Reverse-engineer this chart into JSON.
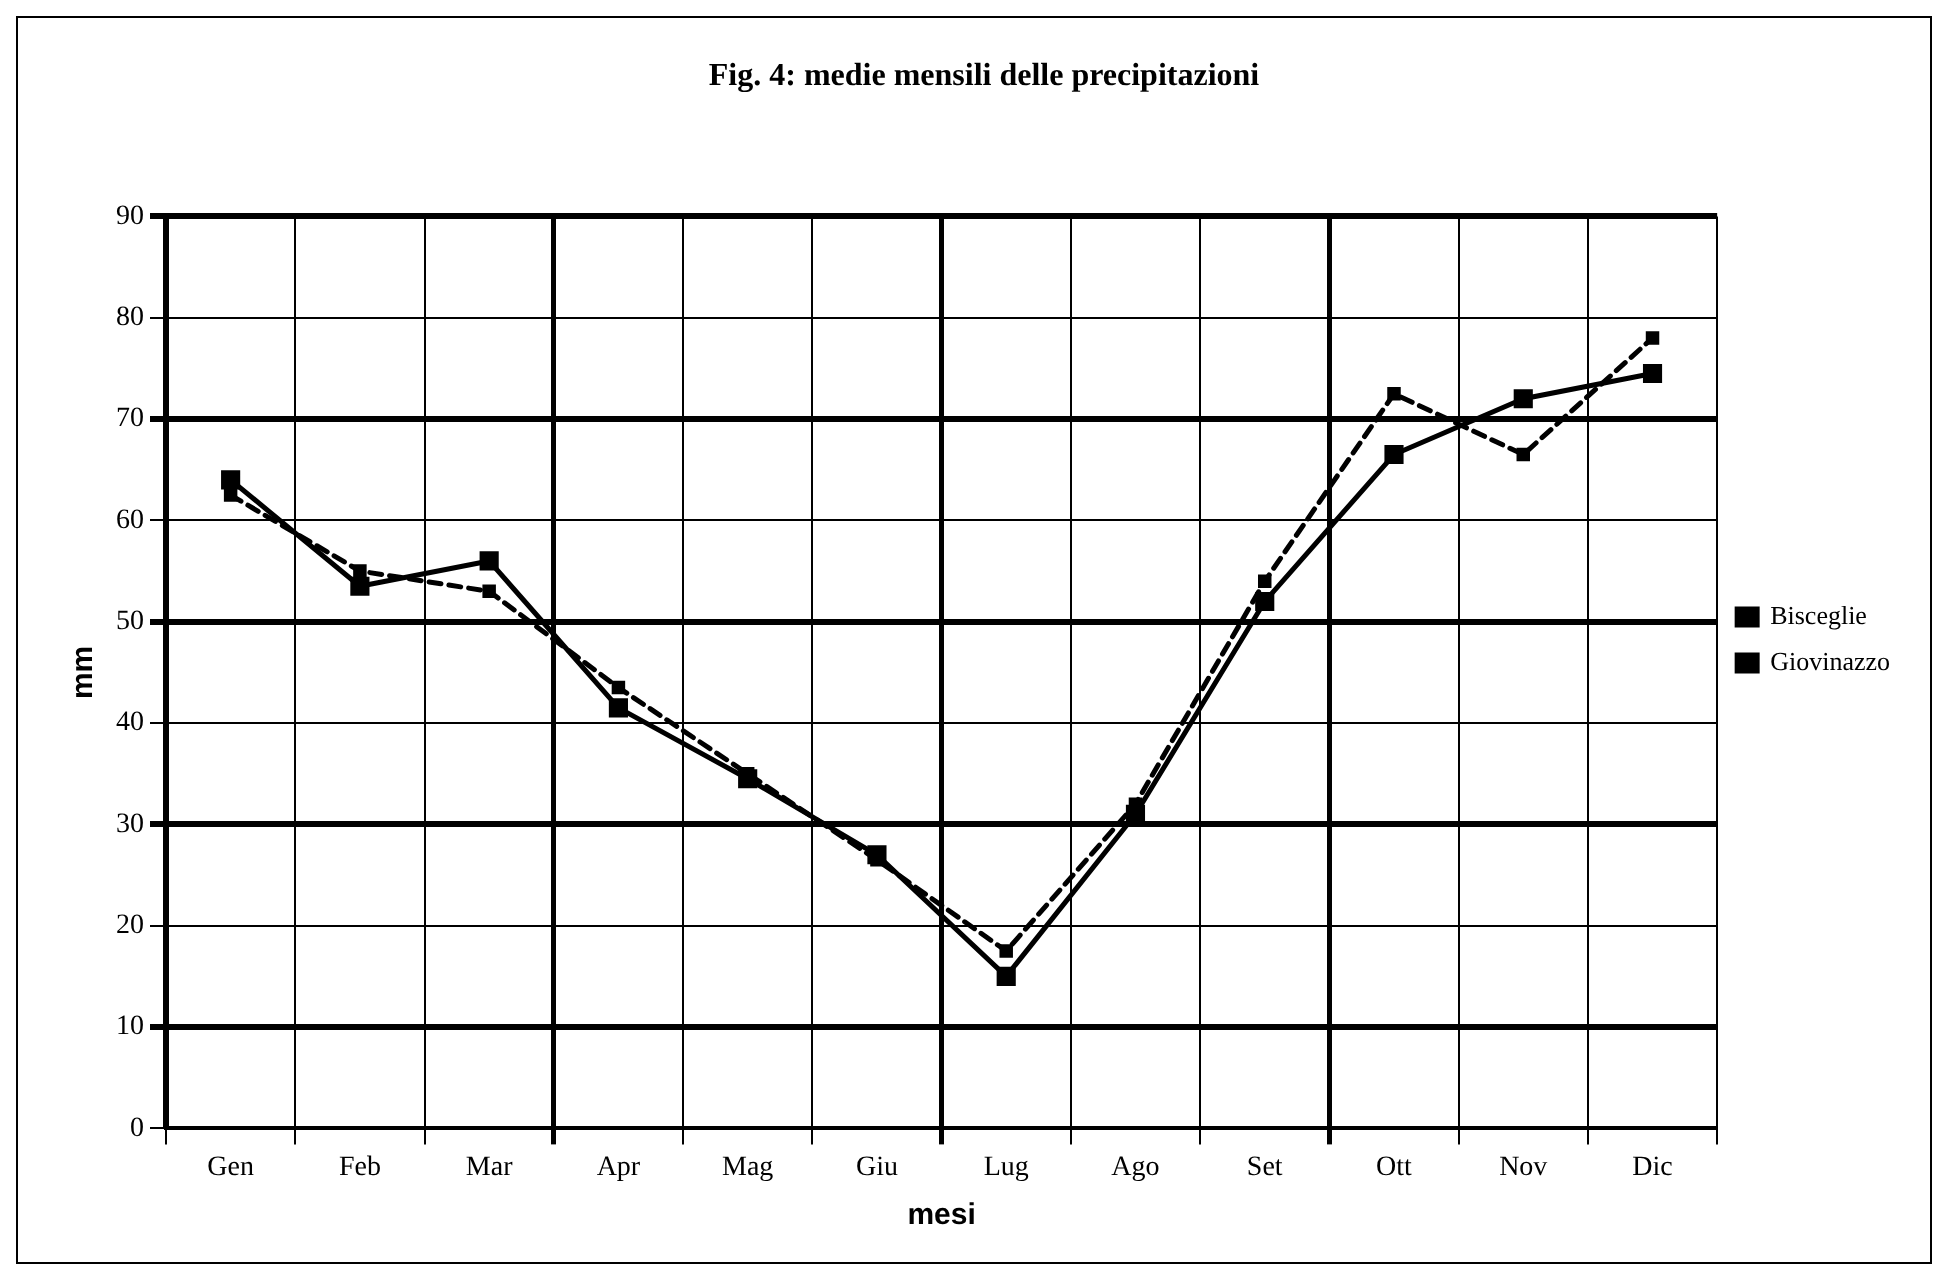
{
  "chart_data": {
    "type": "line",
    "title": "Fig. 4: medie mensili delle precipitazioni",
    "xlabel": "mesi",
    "ylabel": "mm",
    "categories": [
      "Gen",
      "Feb",
      "Mar",
      "Apr",
      "Mag",
      "Giu",
      "Lug",
      "Ago",
      "Set",
      "Ott",
      "Nov",
      "Dic"
    ],
    "series": [
      {
        "name": "Bisceglie",
        "color": "#000000",
        "line_style": "dashed",
        "values": [
          62.5,
          55,
          53,
          43.5,
          35,
          26.5,
          17.5,
          32,
          54,
          72.5,
          66.5,
          78
        ]
      },
      {
        "name": "Giovinazzo",
        "color": "#000000",
        "line_style": "solid",
        "values": [
          64,
          53.5,
          56,
          41.5,
          34.5,
          27,
          15,
          31,
          52,
          66.5,
          72,
          74.5
        ]
      }
    ],
    "ylim": [
      0,
      90
    ],
    "yticks": [
      0,
      10,
      20,
      30,
      40,
      50,
      60,
      70,
      80,
      90
    ],
    "grid": true,
    "legend": "right",
    "marker": "square"
  }
}
